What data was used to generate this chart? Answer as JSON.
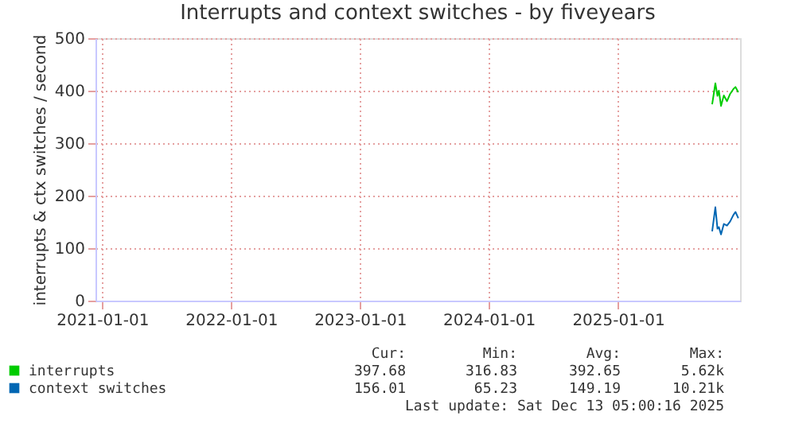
{
  "chart_data": {
    "type": "line",
    "title": "Interrupts and context switches - by fiveyears",
    "ylabel": "interrupts & ctx switches / second",
    "x": [
      "2025-09-25",
      "2025-10-04",
      "2025-10-10",
      "2025-10-14",
      "2025-10-20",
      "2025-10-28",
      "2025-11-06",
      "2025-11-15",
      "2025-11-24",
      "2025-11-30",
      "2025-12-08"
    ],
    "series": [
      {
        "name": "interrupts",
        "color": "#00cc00",
        "values": [
          374,
          414,
          390,
          400,
          371,
          391,
          380,
          394,
          403,
          407,
          397
        ]
      },
      {
        "name": "context switches",
        "color": "#0066b3",
        "values": [
          132,
          178,
          137,
          140,
          126,
          146,
          143,
          151,
          163,
          169,
          157
        ]
      }
    ],
    "xlim": [
      "2020-12-13",
      "2025-12-13"
    ],
    "xticks": [
      "2021-01-01",
      "2022-01-01",
      "2023-01-01",
      "2024-01-01",
      "2025-01-01"
    ],
    "ylim": [
      0,
      500
    ],
    "yticks": [
      0,
      100,
      200,
      300,
      400,
      500
    ],
    "grid": true,
    "legend": "bottom",
    "annotations": [
      "Cur:",
      "Min:",
      "Avg:",
      "Max:",
      "397.68",
      "316.83",
      "392.65",
      "5.62k",
      "156.01",
      "65.23",
      "149.19",
      "10.21k",
      "Last update: Sat Dec 13 05:00:16 2025"
    ]
  }
}
